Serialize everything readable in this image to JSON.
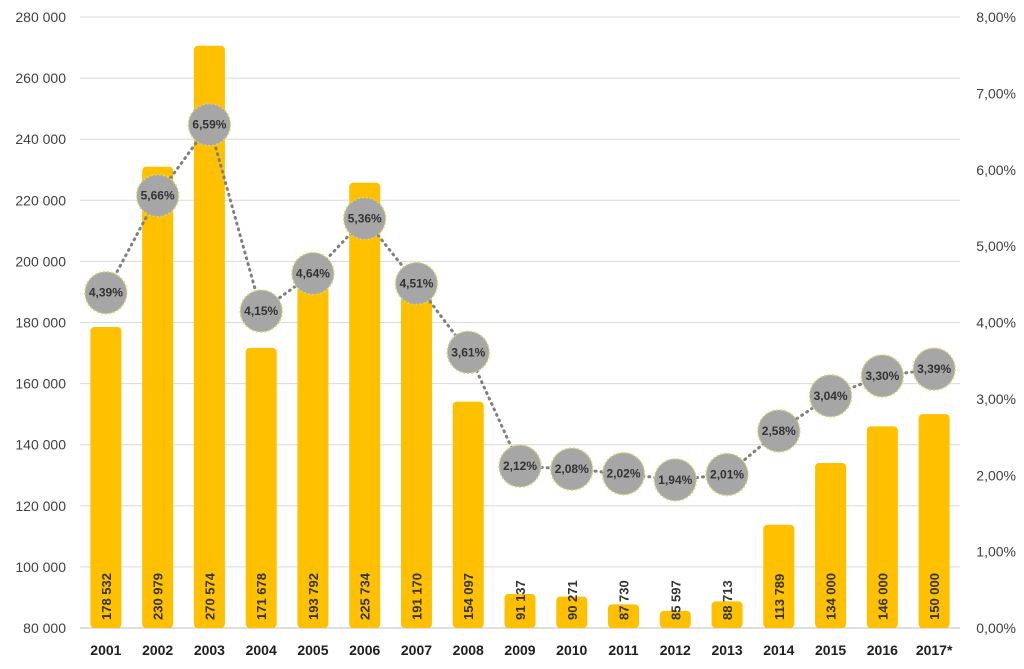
{
  "chart_data": {
    "type": "bar",
    "categories": [
      "2001",
      "2002",
      "2003",
      "2004",
      "2005",
      "2006",
      "2007",
      "2008",
      "2009",
      "2010",
      "2011",
      "2012",
      "2013",
      "2014",
      "2015",
      "2016",
      "2017*"
    ],
    "series": [
      {
        "type": "bar",
        "axis": "left",
        "values": [
          178532,
          230979,
          270574,
          171678,
          193792,
          225734,
          191170,
          154097,
          91137,
          90271,
          87730,
          85597,
          88713,
          113789,
          134000,
          146000,
          150000
        ],
        "labels": [
          "178 532",
          "230 979",
          "270 574",
          "171 678",
          "193 792",
          "225 734",
          "191 170",
          "154 097",
          "91 137",
          "90 271",
          "87 730",
          "85 597",
          "88 713",
          "113 789",
          "134 000",
          "146 000",
          "150 000"
        ],
        "color": "#FFC000"
      },
      {
        "type": "line",
        "axis": "right",
        "values": [
          4.39,
          5.66,
          6.59,
          4.15,
          4.64,
          5.36,
          4.51,
          3.61,
          2.12,
          2.08,
          2.02,
          1.94,
          2.01,
          2.58,
          3.04,
          3.3,
          3.39
        ],
        "labels": [
          "4,39%",
          "5,66%",
          "6,59%",
          "4,15%",
          "4,64%",
          "5,36%",
          "4,51%",
          "3,61%",
          "2,12%",
          "2,08%",
          "2,02%",
          "1,94%",
          "2,01%",
          "2,58%",
          "3,04%",
          "3,30%",
          "3,39%"
        ],
        "color": "#A6A6A6",
        "line_style": "dotted"
      }
    ],
    "y_left": {
      "range": [
        80000,
        280000
      ],
      "ticks": [
        80000,
        100000,
        120000,
        140000,
        160000,
        180000,
        200000,
        220000,
        240000,
        260000,
        280000
      ],
      "tick_labels": [
        "80 000",
        "100 000",
        "120 000",
        "140 000",
        "160 000",
        "180 000",
        "200 000",
        "220 000",
        "240 000",
        "260 000",
        "280 000"
      ]
    },
    "y_right": {
      "range": [
        0,
        8
      ],
      "ticks": [
        0,
        1,
        2,
        3,
        4,
        5,
        6,
        7,
        8
      ],
      "tick_labels": [
        "0,00%",
        "1,00%",
        "2,00%",
        "3,00%",
        "4,00%",
        "5,00%",
        "6,00%",
        "7,00%",
        "8,00%"
      ]
    },
    "grid": true,
    "legend": "none"
  }
}
